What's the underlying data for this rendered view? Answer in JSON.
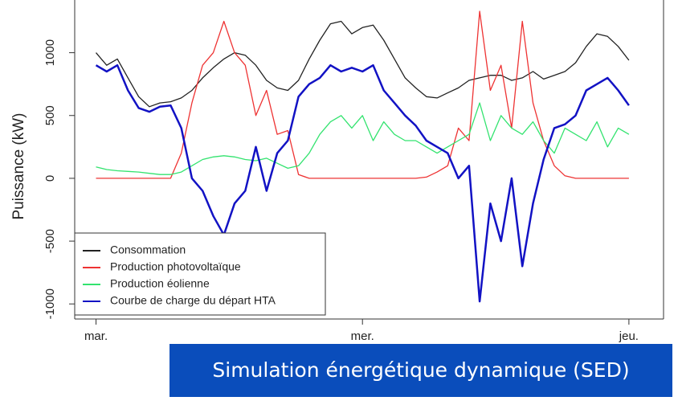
{
  "chart_data": {
    "type": "line",
    "ylabel": "Puissance (kW)",
    "x": [
      0,
      0.04,
      0.08,
      0.12,
      0.16,
      0.2,
      0.24,
      0.28,
      0.32,
      0.36,
      0.4,
      0.44,
      0.48,
      0.52,
      0.56,
      0.6,
      0.64,
      0.68,
      0.72,
      0.76,
      0.8,
      0.84,
      0.88,
      0.92,
      0.96,
      1,
      1.04,
      1.08,
      1.12,
      1.16,
      1.2,
      1.24,
      1.28,
      1.32,
      1.36,
      1.4,
      1.44,
      1.48,
      1.52,
      1.56,
      1.6,
      1.64,
      1.68,
      1.72,
      1.76,
      1.8,
      1.84,
      1.88,
      1.92,
      1.96,
      2
    ],
    "series": [
      {
        "name": "Consommation",
        "color": "#222222",
        "values": [
          1000,
          900,
          950,
          800,
          650,
          570,
          600,
          610,
          640,
          700,
          800,
          880,
          950,
          1000,
          980,
          900,
          780,
          720,
          700,
          780,
          950,
          1100,
          1230,
          1250,
          1150,
          1200,
          1220,
          1100,
          950,
          800,
          720,
          650,
          640,
          680,
          720,
          780,
          800,
          820,
          820,
          780,
          800,
          850,
          790,
          820,
          850,
          920,
          1050,
          1150,
          1130,
          1050,
          940
        ]
      },
      {
        "name": "Production photovoltaïque",
        "color": "#ee3333",
        "values": [
          0,
          0,
          0,
          0,
          0,
          0,
          0,
          0,
          200,
          600,
          900,
          1000,
          1250,
          1000,
          900,
          500,
          700,
          350,
          380,
          30,
          0,
          0,
          0,
          0,
          0,
          0,
          0,
          0,
          0,
          0,
          0,
          10,
          50,
          100,
          400,
          300,
          1330,
          700,
          900,
          400,
          1250,
          600,
          300,
          100,
          20,
          0,
          0,
          0,
          0,
          0,
          0
        ]
      },
      {
        "name": "Production éolienne",
        "color": "#33e36f",
        "values": [
          90,
          70,
          60,
          55,
          50,
          40,
          30,
          30,
          50,
          100,
          150,
          170,
          180,
          170,
          150,
          140,
          160,
          120,
          80,
          100,
          200,
          350,
          450,
          500,
          400,
          500,
          300,
          450,
          350,
          300,
          300,
          250,
          200,
          250,
          300,
          350,
          600,
          300,
          500,
          400,
          350,
          450,
          300,
          200,
          400,
          350,
          300,
          450,
          250,
          400,
          350
        ]
      },
      {
        "name": "Courbe de charge du départ HTA",
        "color": "#1212c4",
        "values": [
          900,
          850,
          900,
          700,
          560,
          530,
          570,
          580,
          400,
          0,
          -100,
          -300,
          -450,
          -200,
          -100,
          250,
          -100,
          200,
          300,
          650,
          750,
          800,
          900,
          850,
          880,
          850,
          900,
          700,
          600,
          500,
          420,
          300,
          250,
          200,
          0,
          100,
          -980,
          -200,
          -500,
          0,
          -700,
          -200,
          150,
          400,
          430,
          500,
          700,
          750,
          800,
          700,
          580
        ]
      }
    ],
    "xlim": [
      -0.08,
      2.13
    ],
    "xticks": [
      {
        "value": 0,
        "label": "mar."
      },
      {
        "value": 1,
        "label": "mer."
      },
      {
        "value": 2,
        "label": "jeu."
      }
    ],
    "ylim": [
      -1120,
      1330
    ],
    "yticks": [
      -1000,
      -500,
      0,
      500,
      1000
    ],
    "legend": "bottom-left"
  },
  "caption": "Simulation énergétique dynamique (SED)"
}
